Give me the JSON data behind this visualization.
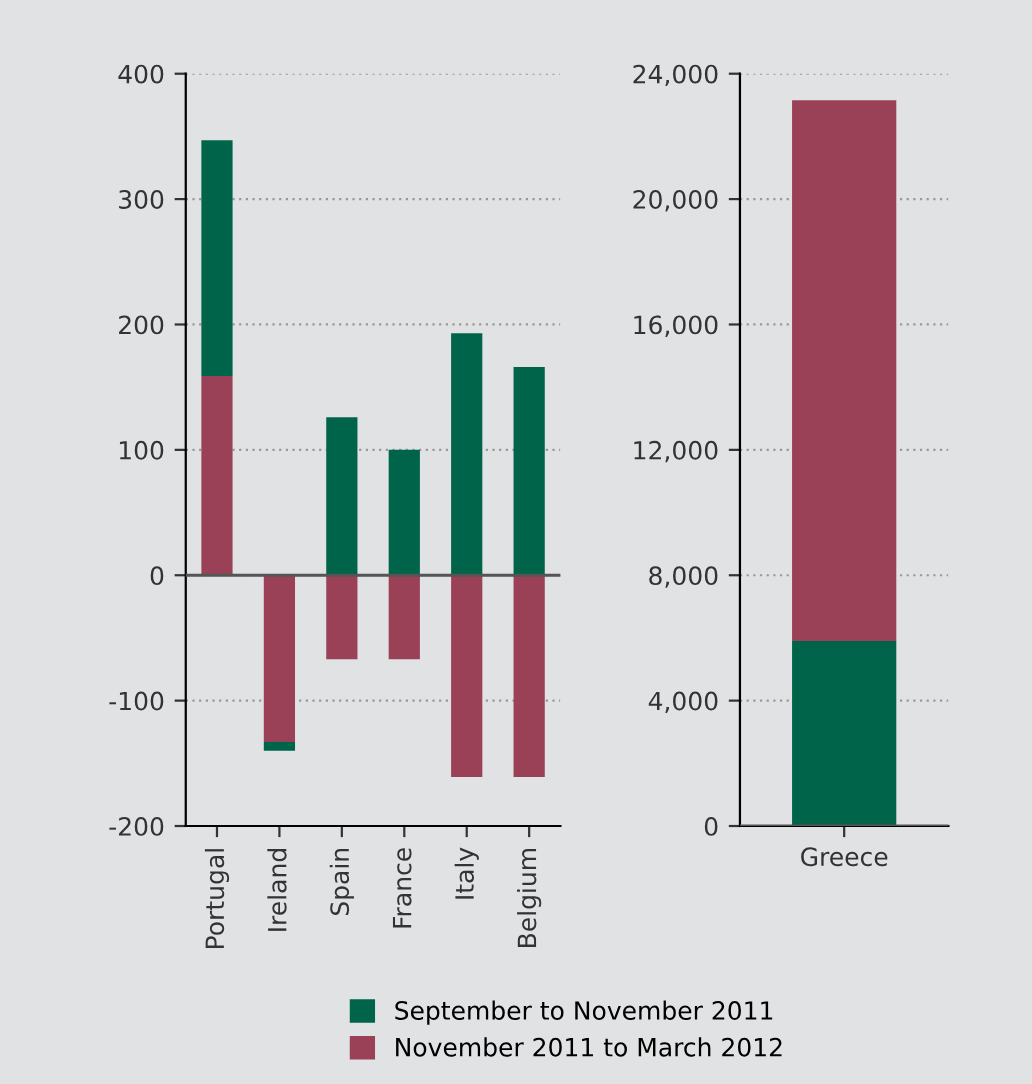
{
  "chart_data": [
    {
      "type": "bar",
      "stacked": true,
      "categories": [
        "Portugal",
        "Ireland",
        "Spain",
        "France",
        "Italy",
        "Belgium"
      ],
      "series": [
        {
          "name": "November 2011 to March 2012",
          "color": "#9a4157",
          "values": [
            159,
            -133,
            -67,
            -67,
            -161,
            -161
          ]
        },
        {
          "name": "September to November 2011",
          "color": "#00644b",
          "values": [
            188,
            -7,
            126,
            100,
            193,
            166
          ]
        }
      ],
      "ylim": [
        -200,
        400
      ],
      "yticks": [
        {
          "value": -200,
          "label": "-200"
        },
        {
          "value": -100,
          "label": "-100"
        },
        0,
        100,
        200,
        300,
        400
      ],
      "grid": "y",
      "legend": "bottom"
    },
    {
      "type": "bar",
      "stacked": true,
      "categories": [
        "Greece"
      ],
      "series": [
        {
          "color": "#00644b",
          "values": [
            5900
          ]
        },
        {
          "color": "#9a4157",
          "values": [
            17250
          ]
        }
      ],
      "ylim": [
        0,
        24000
      ],
      "yticks": [
        {
          "value": 0,
          "label": "0"
        },
        {
          "value": 4000,
          "label": "4,000"
        },
        {
          "value": 8000,
          "label": "8,000"
        },
        {
          "value": 12000,
          "label": "12,000"
        },
        {
          "value": 16000,
          "label": "16,000"
        },
        {
          "value": 20000,
          "label": "20,000"
        },
        {
          "value": 24000,
          "label": "24,000"
        }
      ],
      "grid": "y"
    }
  ]
}
